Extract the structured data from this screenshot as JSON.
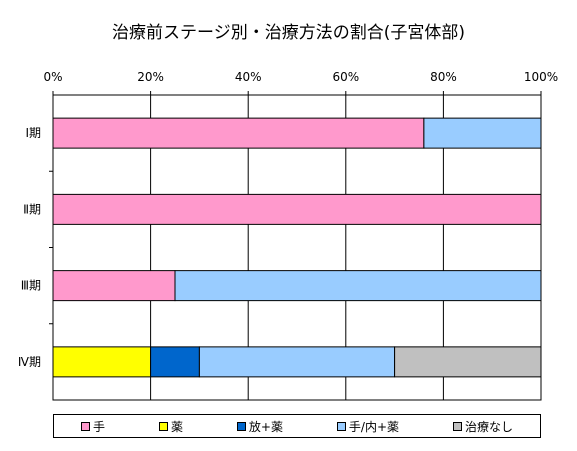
{
  "chart_data": {
    "type": "bar",
    "orientation": "horizontal",
    "stacked": "percent",
    "title": "治療前ステージ別・治療方法の割合(子宮体部)",
    "categories": [
      "Ⅰ期",
      "Ⅱ期",
      "Ⅲ期",
      "Ⅳ期"
    ],
    "xlim": [
      0,
      100
    ],
    "xticks": [
      "0%",
      "20%",
      "40%",
      "60%",
      "80%",
      "100%"
    ],
    "grid": true,
    "legend": "bottom",
    "series": [
      {
        "name": "手",
        "color": "#FF99CC",
        "values": [
          76,
          100,
          25,
          0
        ]
      },
      {
        "name": "薬",
        "color": "#FFFF00",
        "values": [
          0,
          0,
          0,
          20
        ]
      },
      {
        "name": "放+薬",
        "color": "#0066CC",
        "values": [
          0,
          0,
          0,
          10
        ]
      },
      {
        "name": "手/内+薬",
        "color": "#99CCFF",
        "values": [
          24,
          0,
          75,
          40
        ]
      },
      {
        "name": "治療なし",
        "color": "#C0C0C0",
        "values": [
          0,
          0,
          0,
          30
        ]
      }
    ]
  }
}
